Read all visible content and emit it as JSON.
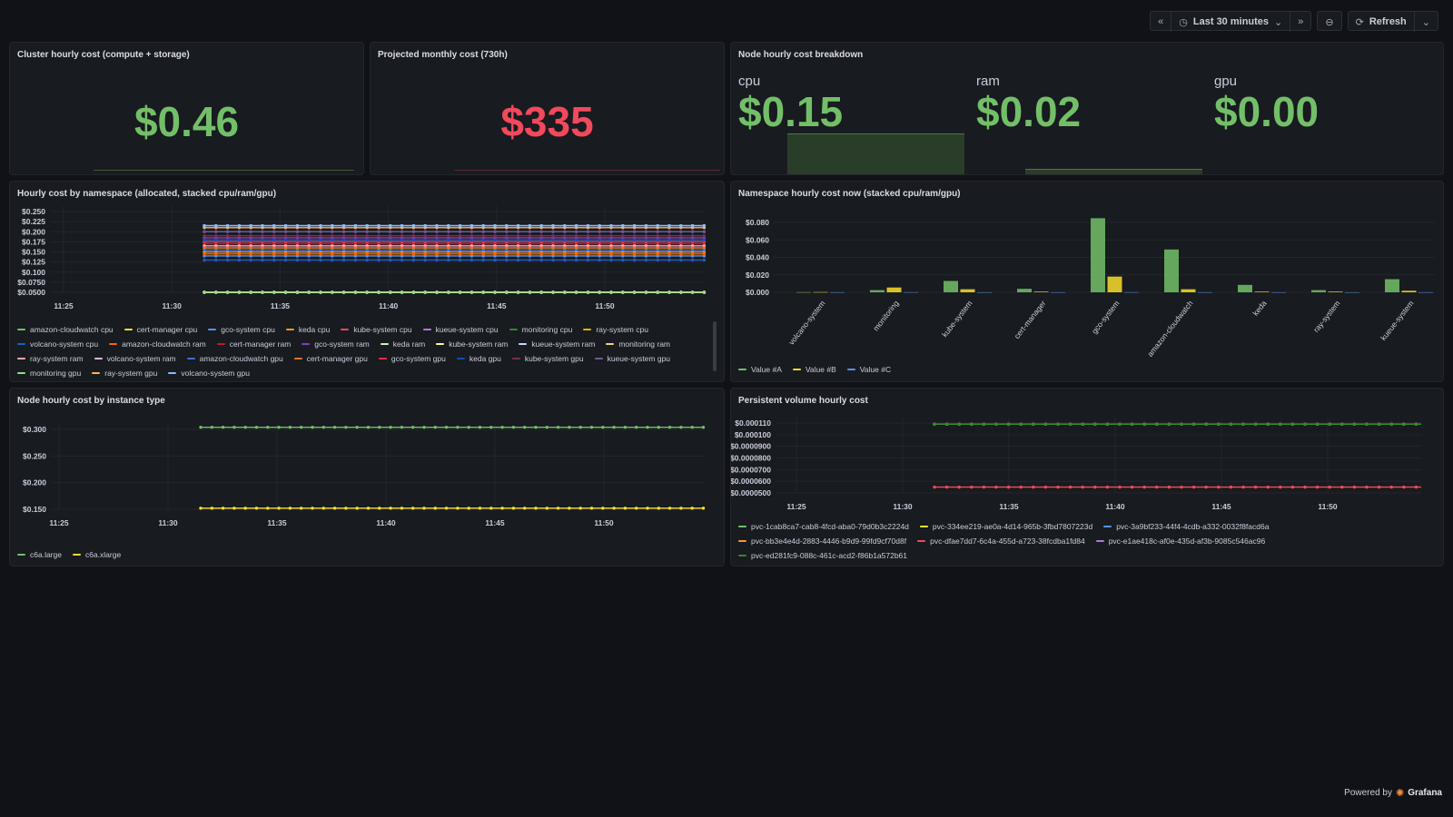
{
  "toolbar": {
    "back_icon": "chevrons-left-icon",
    "clock_icon": "clock-icon",
    "time_range": "Last 30 minutes",
    "forward_icon": "chevrons-right-icon",
    "zoom_icon": "zoom-out-icon",
    "refresh_label": "Refresh"
  },
  "panels": {
    "cluster_cost": {
      "title": "Cluster hourly cost (compute + storage)",
      "value": "$0.46",
      "color": "#73bf69"
    },
    "projected": {
      "title": "Projected monthly cost (730h)",
      "value": "$335",
      "color": "#f2495c"
    },
    "node_breakdown": {
      "title": "Node hourly cost breakdown",
      "stats": [
        {
          "label": "cpu",
          "value": "$0.15"
        },
        {
          "label": "ram",
          "value": "$0.02"
        },
        {
          "label": "gpu",
          "value": "$0.00"
        }
      ]
    },
    "ns_timeseries": {
      "title": "Hourly cost by namespace (allocated, stacked cpu/ram/gpu)"
    },
    "ns_bar": {
      "title": "Namespace hourly cost now (stacked cpu/ram/gpu)"
    },
    "instance_type": {
      "title": "Node hourly cost by instance type"
    },
    "pv_cost": {
      "title": "Persistent volume hourly cost"
    }
  },
  "chart_data": [
    {
      "type": "line",
      "id": "ns_timeseries",
      "ylim": [
        0.05,
        0.25
      ],
      "y_ticks": [
        "$0.250",
        "$0.225",
        "$0.200",
        "$0.175",
        "$0.150",
        "$0.125",
        "$0.100",
        "$0.0750",
        "$0.0500"
      ],
      "x_ticks": [
        "11:25",
        "11:30",
        "11:35",
        "11:40",
        "11:45",
        "11:50"
      ],
      "series": [
        {
          "name": "amazon-cloudwatch cpu",
          "color": "#73bf69",
          "values": [
            0.05
          ]
        },
        {
          "name": "cert-manager cpu",
          "color": "#fade2a",
          "values": [
            0.05
          ]
        },
        {
          "name": "gco-system cpu",
          "color": "#5794f2",
          "values": [
            0.14
          ]
        },
        {
          "name": "keda cpu",
          "color": "#ff9830",
          "values": [
            0.15
          ]
        },
        {
          "name": "kube-system cpu",
          "color": "#f2495c",
          "values": [
            0.16
          ]
        },
        {
          "name": "kueue-system cpu",
          "color": "#b877d9",
          "values": [
            0.18
          ]
        },
        {
          "name": "monitoring cpu",
          "color": "#37872d",
          "values": [
            0.05
          ]
        },
        {
          "name": "ray-system cpu",
          "color": "#e0b400",
          "values": [
            0.05
          ]
        },
        {
          "name": "volcano-system cpu",
          "color": "#1f60c4",
          "values": [
            0.13
          ]
        },
        {
          "name": "amazon-cloudwatch ram",
          "color": "#fa6400",
          "values": [
            0.145
          ]
        },
        {
          "name": "cert-manager ram",
          "color": "#c4162a",
          "values": [
            0.17
          ]
        },
        {
          "name": "gco-system ram",
          "color": "#8f3bb8",
          "values": [
            0.185
          ]
        },
        {
          "name": "keda ram",
          "color": "#c8f2c2",
          "values": [
            0.05
          ]
        },
        {
          "name": "kube-system ram",
          "color": "#fff899",
          "values": [
            0.05
          ]
        },
        {
          "name": "kueue-system ram",
          "color": "#c0d8ff",
          "values": [
            0.215
          ]
        },
        {
          "name": "monitoring ram",
          "color": "#ffcb7d",
          "values": [
            0.05
          ]
        },
        {
          "name": "ray-system ram",
          "color": "#ffa6b0",
          "values": [
            0.165
          ]
        },
        {
          "name": "volcano-system ram",
          "color": "#deb6f2",
          "values": [
            0.175
          ]
        },
        {
          "name": "amazon-cloudwatch gpu",
          "color": "#3274d9",
          "values": [
            0.155
          ]
        },
        {
          "name": "cert-manager gpu",
          "color": "#e0752d",
          "values": [
            0.16
          ]
        },
        {
          "name": "gco-system gpu",
          "color": "#e02f44",
          "values": [
            0.175
          ]
        },
        {
          "name": "keda gpu",
          "color": "#1250b0",
          "values": [
            0.18
          ]
        },
        {
          "name": "kube-system gpu",
          "color": "#7b2d54",
          "values": [
            0.19
          ]
        },
        {
          "name": "kueue-system gpu",
          "color": "#6f5a9c",
          "values": [
            0.2
          ]
        },
        {
          "name": "monitoring gpu",
          "color": "#96d98d",
          "values": [
            0.05
          ]
        },
        {
          "name": "ray-system gpu",
          "color": "#ffb357",
          "values": [
            0.21
          ]
        },
        {
          "name": "volcano-system gpu",
          "color": "#8ab8ff",
          "values": [
            0.215
          ]
        }
      ]
    },
    {
      "type": "bar",
      "id": "ns_bar",
      "ylim": [
        0,
        0.08
      ],
      "y_ticks": [
        "$0.080",
        "$0.060",
        "$0.040",
        "$0.020",
        "$0.000"
      ],
      "categories": [
        "volcano-system",
        "monitoring",
        "kube-system",
        "cert-manager",
        "gco-system",
        "amazon-cloudwatch",
        "keda",
        "ray-system",
        "kueue-system"
      ],
      "series": [
        {
          "name": "Value #A",
          "color": "#73bf69",
          "values": [
            0.0002,
            0.0025,
            0.013,
            0.004,
            0.085,
            0.049,
            0.0085,
            0.0025,
            0.015
          ]
        },
        {
          "name": "Value #B",
          "color": "#fade2a",
          "values": [
            0.0003,
            0.0055,
            0.0035,
            0.0008,
            0.018,
            0.0035,
            0.0008,
            0.0008,
            0.0018
          ]
        },
        {
          "name": "Value #C",
          "color": "#5794f2",
          "values": [
            0.0001,
            0.0002,
            0.0001,
            0.0001,
            0.0002,
            0.0001,
            0.0001,
            0.0001,
            0.0001
          ]
        }
      ]
    },
    {
      "type": "line",
      "id": "instance_type",
      "ylim": [
        0.15,
        0.3
      ],
      "y_ticks": [
        "$0.300",
        "$0.250",
        "$0.200",
        "$0.150"
      ],
      "x_ticks": [
        "11:25",
        "11:30",
        "11:35",
        "11:40",
        "11:45",
        "11:50"
      ],
      "series": [
        {
          "name": "c6a.large",
          "color": "#73bf69",
          "values": [
            0.304
          ]
        },
        {
          "name": "c6a.xlarge",
          "color": "#fade2a",
          "values": [
            0.152
          ]
        }
      ]
    },
    {
      "type": "line",
      "id": "pv_cost",
      "ylim": [
        5e-05,
        0.00011
      ],
      "y_ticks": [
        "$0.000110",
        "$0.000100",
        "$0.0000900",
        "$0.0000800",
        "$0.0000700",
        "$0.0000600",
        "$0.0000500"
      ],
      "x_ticks": [
        "11:25",
        "11:30",
        "11:35",
        "11:40",
        "11:45",
        "11:50"
      ],
      "series": [
        {
          "name": "pvc-1cab8ca7-cab8-4fcd-aba0-79d0b3c2224d",
          "color": "#73bf69",
          "values": [
            0.000109
          ]
        },
        {
          "name": "pvc-334ee219-ae0a-4d14-965b-3fbd7807223d",
          "color": "#fade2a",
          "values": [
            0.000109
          ]
        },
        {
          "name": "pvc-3a9bf233-44f4-4cdb-a332-0032f8facd6a",
          "color": "#5794f2",
          "values": [
            0.000109
          ]
        },
        {
          "name": "pvc-bb3e4e4d-2883-4446-b9d9-99fd9cf70d8f",
          "color": "#ff9830",
          "values": [
            0.000109
          ]
        },
        {
          "name": "pvc-dfae7dd7-6c4a-455d-a723-38fcdba1fd84",
          "color": "#f2495c",
          "values": [
            5.5e-05
          ]
        },
        {
          "name": "pvc-e1ae418c-af0e-435d-af3b-9085c546ac96",
          "color": "#b877d9",
          "values": [
            0.000109
          ]
        },
        {
          "name": "pvc-ed281fc9-088c-461c-acd2-f86b1a572b61",
          "color": "#37872d",
          "values": [
            0.000109
          ]
        }
      ]
    }
  ],
  "footer": {
    "powered_by": "Powered by",
    "brand": "Grafana"
  }
}
